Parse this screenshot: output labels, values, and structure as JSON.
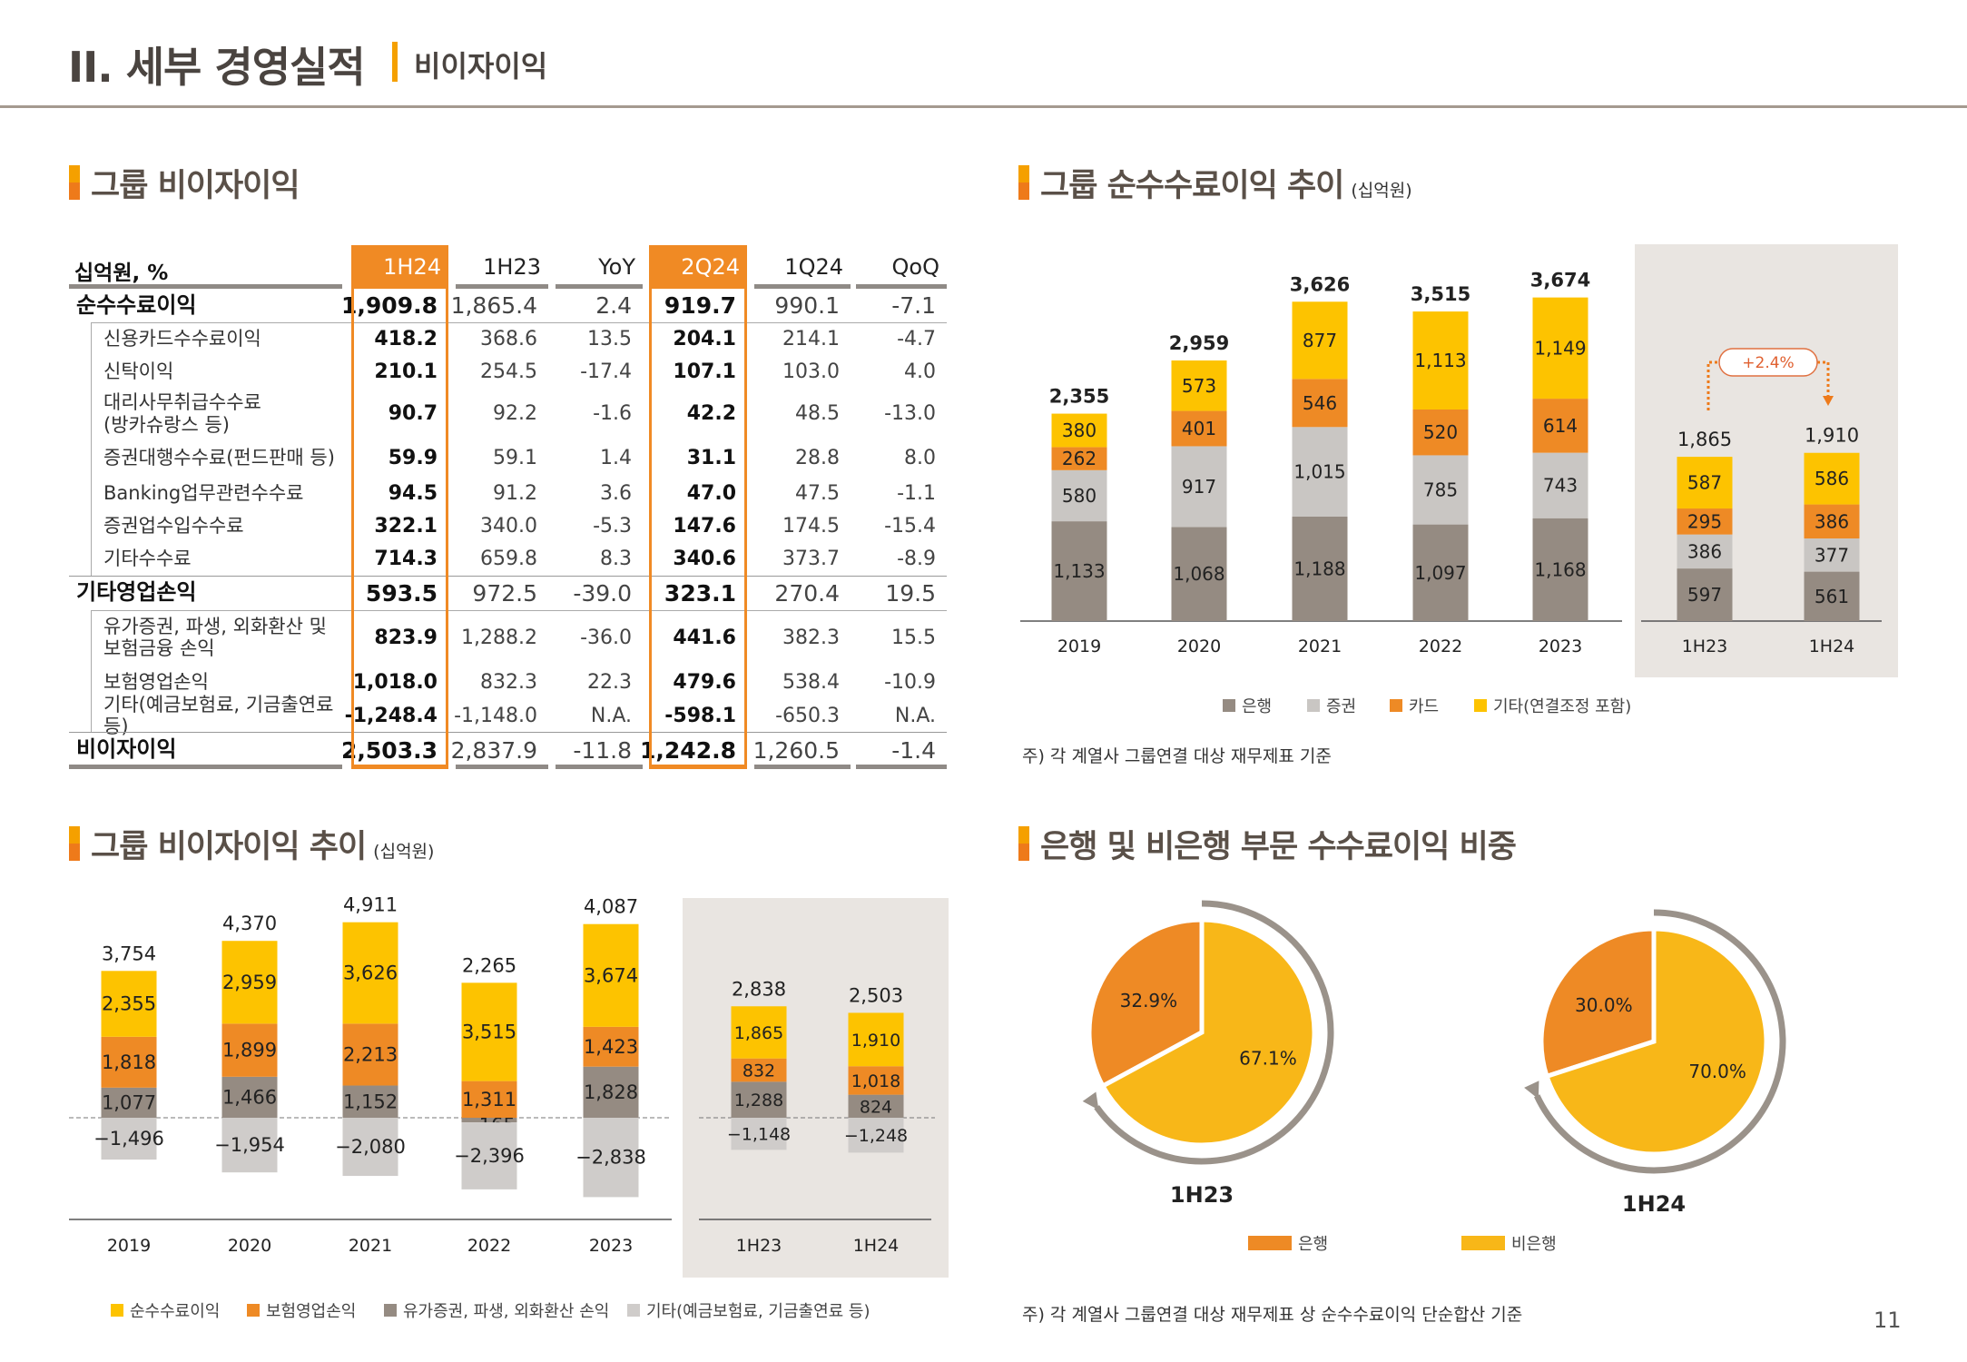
{
  "header": {
    "title": "II. 세부 경영실적",
    "subtitle": "비이자이익",
    "page_number": "11"
  },
  "colors": {
    "accent": "#F08A24",
    "yellow": "#FDC300",
    "bank_gray": "#958B82",
    "light_gray": "#C9C6C3",
    "panel": "#E9E5E1"
  },
  "table_section": {
    "title": "그룹 비이자이익",
    "unit_label": "십억원, %",
    "columns": [
      "1H24",
      "1H23",
      "YoY",
      "2Q24",
      "1Q24",
      "QoQ"
    ],
    "highlight_columns": [
      "1H24",
      "2Q24"
    ],
    "rows": [
      {
        "label": "순수수료이익",
        "level": "main",
        "values": [
          "1,909.8",
          "1,865.4",
          "2.4",
          "919.7",
          "990.1",
          "-7.1"
        ]
      },
      {
        "label": "신용카드수수료이익",
        "level": "sub",
        "values": [
          "418.2",
          "368.6",
          "13.5",
          "204.1",
          "214.1",
          "-4.7"
        ]
      },
      {
        "label": "신탁이익",
        "level": "sub",
        "values": [
          "210.1",
          "254.5",
          "-17.4",
          "107.1",
          "103.0",
          "4.0"
        ]
      },
      {
        "label": "대리사무취급수수료\n(방카슈랑스 등)",
        "level": "sub",
        "values": [
          "90.7",
          "92.2",
          "-1.6",
          "42.2",
          "48.5",
          "-13.0"
        ]
      },
      {
        "label": "증권대행수수료(펀드판매 등)",
        "level": "sub",
        "values": [
          "59.9",
          "59.1",
          "1.4",
          "31.1",
          "28.8",
          "8.0"
        ]
      },
      {
        "label": "Banking업무관련수수료",
        "level": "sub",
        "values": [
          "94.5",
          "91.2",
          "3.6",
          "47.0",
          "47.5",
          "-1.1"
        ]
      },
      {
        "label": "증권업수입수수료",
        "level": "sub",
        "values": [
          "322.1",
          "340.0",
          "-5.3",
          "147.6",
          "174.5",
          "-15.4"
        ]
      },
      {
        "label": "기타수수료",
        "level": "sub",
        "values": [
          "714.3",
          "659.8",
          "8.3",
          "340.6",
          "373.7",
          "-8.9"
        ]
      },
      {
        "label": "기타영업손익",
        "level": "main",
        "values": [
          "593.5",
          "972.5",
          "-39.0",
          "323.1",
          "270.4",
          "19.5"
        ]
      },
      {
        "label": "유가증권, 파생, 외화환산 및\n보험금융 손익",
        "level": "sub",
        "values": [
          "823.9",
          "1,288.2",
          "-36.0",
          "441.6",
          "382.3",
          "15.5"
        ]
      },
      {
        "label": "보험영업손익",
        "level": "sub",
        "values": [
          "1,018.0",
          "832.3",
          "22.3",
          "479.6",
          "538.4",
          "-10.9"
        ]
      },
      {
        "label": "기타(예금보험료, 기금출연료 등)",
        "level": "sub",
        "values": [
          "-1,248.4",
          "-1,148.0",
          "N.A.",
          "-598.1",
          "-650.3",
          "N.A."
        ]
      },
      {
        "label": "비이자이익",
        "level": "main",
        "values": [
          "2,503.3",
          "2,837.9",
          "-11.8",
          "1,242.8",
          "1,260.5",
          "-1.4"
        ]
      }
    ]
  },
  "fee_section": {
    "title": "그룹 순수수료이익 추이",
    "unit": "(십억원)",
    "note": "주) 각 계열사 그룹연결 대상 재무제표 기준"
  },
  "nonint_section": {
    "title": "그룹 비이자이익 추이",
    "unit": "(십억원)"
  },
  "share_section": {
    "title": "은행 및 비은행 부문 수수료이익 비중",
    "note": "주) 각 계열사 그룹연결 대상 재무제표 상 순수수료이익 단순합산 기준"
  },
  "chart_data": [
    {
      "type": "bar",
      "stacked": true,
      "categories": [
        "2019",
        "2020",
        "2021",
        "2022",
        "2023",
        "1H23",
        "1H24"
      ],
      "series": [
        {
          "name": "은행",
          "color": "#958B82",
          "values": [
            1133,
            1068,
            1188,
            1097,
            1168,
            597,
            561
          ]
        },
        {
          "name": "증권",
          "color": "#C9C6C3",
          "values": [
            580,
            917,
            1015,
            785,
            743,
            386,
            377
          ]
        },
        {
          "name": "카드",
          "color": "#EE8A25",
          "values": [
            262,
            401,
            546,
            520,
            614,
            295,
            386
          ]
        },
        {
          "name": "기타(연결조정 포함)",
          "color": "#FDC300",
          "values": [
            380,
            573,
            877,
            1113,
            1149,
            587,
            586
          ]
        }
      ],
      "totals": [
        "2,355",
        "2,959",
        "3,626",
        "3,515",
        "3,674",
        "1,865",
        "1,910"
      ],
      "annotation": "+2.4%",
      "legend": "bottom"
    },
    {
      "type": "bar",
      "stacked": true,
      "categories": [
        "2019",
        "2020",
        "2021",
        "2022",
        "2023",
        "1H23",
        "1H24"
      ],
      "series": [
        {
          "name": "순수수료이익",
          "color": "#FDC300",
          "values": [
            2355,
            2959,
            3626,
            3515,
            3674,
            1865,
            1910
          ]
        },
        {
          "name": "보험영업손익",
          "color": "#EE8A25",
          "values": [
            1818,
            1899,
            2213,
            1311,
            1423,
            832,
            1018
          ]
        },
        {
          "name": "유가증권, 파생, 외화환산 손익",
          "color": "#958B82",
          "values": [
            1077,
            1466,
            1152,
            -165,
            1828,
            1288,
            824
          ]
        },
        {
          "name": "기타(예금보험료, 기금출연료 등)",
          "color": "#CFCCCA",
          "values": [
            -1496,
            -1954,
            -2080,
            -2396,
            -2838,
            -1148,
            -1248
          ]
        }
      ],
      "totals": [
        "3,754",
        "4,370",
        "4,911",
        "2,265",
        "4,087",
        "2,838",
        "2,503"
      ],
      "legend": "bottom"
    },
    {
      "type": "pie",
      "categories": [
        "은행",
        "비은행"
      ],
      "colors": [
        "#EE8A25",
        "#F8B718"
      ],
      "pies": [
        {
          "label": "1H23",
          "values": [
            32.9,
            67.1
          ],
          "texts": [
            "32.9%",
            "67.1%"
          ]
        },
        {
          "label": "1H24",
          "values": [
            30.0,
            70.0
          ],
          "texts": [
            "30.0%",
            "70.0%"
          ]
        }
      ],
      "legend": "bottom"
    }
  ]
}
